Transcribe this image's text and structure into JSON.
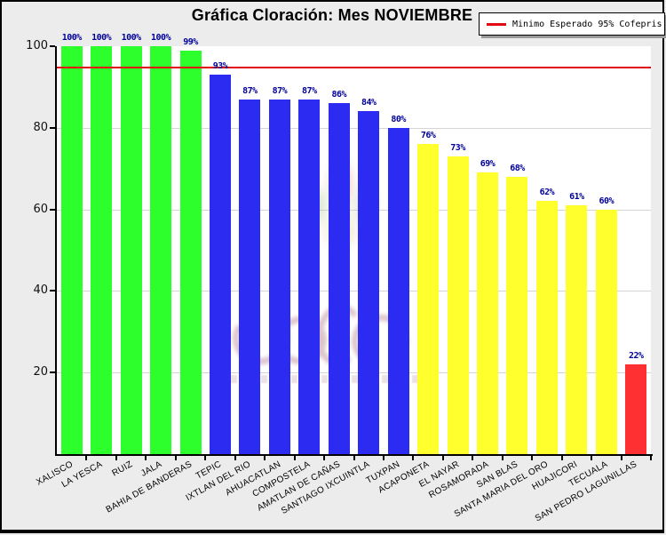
{
  "title": "Gráfica Cloración: Mes NOVIEMBRE",
  "legend": {
    "label": "Minimo Esperado 95% Cofepris",
    "swatch_color": "#e10814"
  },
  "chart_data": {
    "type": "bar",
    "title": "Gráfica Cloración: Mes NOVIEMBRE",
    "xlabel": "",
    "ylabel": "",
    "ylim": [
      0,
      100
    ],
    "yticks": [
      20,
      40,
      60,
      80,
      100
    ],
    "gridlines": [
      20,
      40,
      60,
      80
    ],
    "grid": true,
    "legend_position": "top-right",
    "reference_line": {
      "value": 95,
      "color": "#e10814",
      "label": "Minimo Esperado 95% Cofepris"
    },
    "categories": [
      "XALISCO",
      "LA YESCA",
      "RUIZ",
      "JALA",
      "BAHIA DE BANDERAS",
      "TEPIC",
      "IXTLAN DEL RIO",
      "AHUACATLAN",
      "COMPOSTELA",
      "AMATLAN DE CAÑAS",
      "SANTIAGO IXCUINTLA",
      "TUXPAN",
      "ACAPONETA",
      "EL NAYAR",
      "ROSAMORADA",
      "SAN BLAS",
      "SANTA MARIA DEL ORO",
      "HUAJICORI",
      "TECUALA",
      "SAN PEDRO LAGUNILLAS"
    ],
    "values": [
      100,
      100,
      100,
      100,
      99,
      93,
      87,
      87,
      87,
      86,
      84,
      80,
      76,
      73,
      69,
      68,
      62,
      61,
      60,
      22
    ],
    "value_labels": [
      "100%",
      "100%",
      "100%",
      "100%",
      "99%",
      "93%",
      "87%",
      "87%",
      "87%",
      "86%",
      "84%",
      "80%",
      "76%",
      "73%",
      "69%",
      "68%",
      "62%",
      "61%",
      "60%",
      "22%"
    ],
    "bar_colors": [
      "#2dff2d",
      "#2dff2d",
      "#2dff2d",
      "#2dff2d",
      "#2dff2d",
      "#2b2bf2",
      "#2b2bf2",
      "#2b2bf2",
      "#2b2bf2",
      "#2b2bf2",
      "#2b2bf2",
      "#2b2bf2",
      "#ffff2e",
      "#ffff2e",
      "#ffff2e",
      "#ffff2e",
      "#ffff2e",
      "#ffff2e",
      "#ffff2e",
      "#ff3032"
    ]
  },
  "colors": {
    "figure_background": "#ececec",
    "plot_background": "#ffffff",
    "axis": "#000000",
    "gridline": "#d4d4d4",
    "value_label": "#000099",
    "green_bar": "#2dff2d",
    "blue_bar": "#2b2bf2",
    "yellow_bar": "#ffff2e",
    "red_bar": "#ff3032",
    "reference_line": "#e10814"
  }
}
